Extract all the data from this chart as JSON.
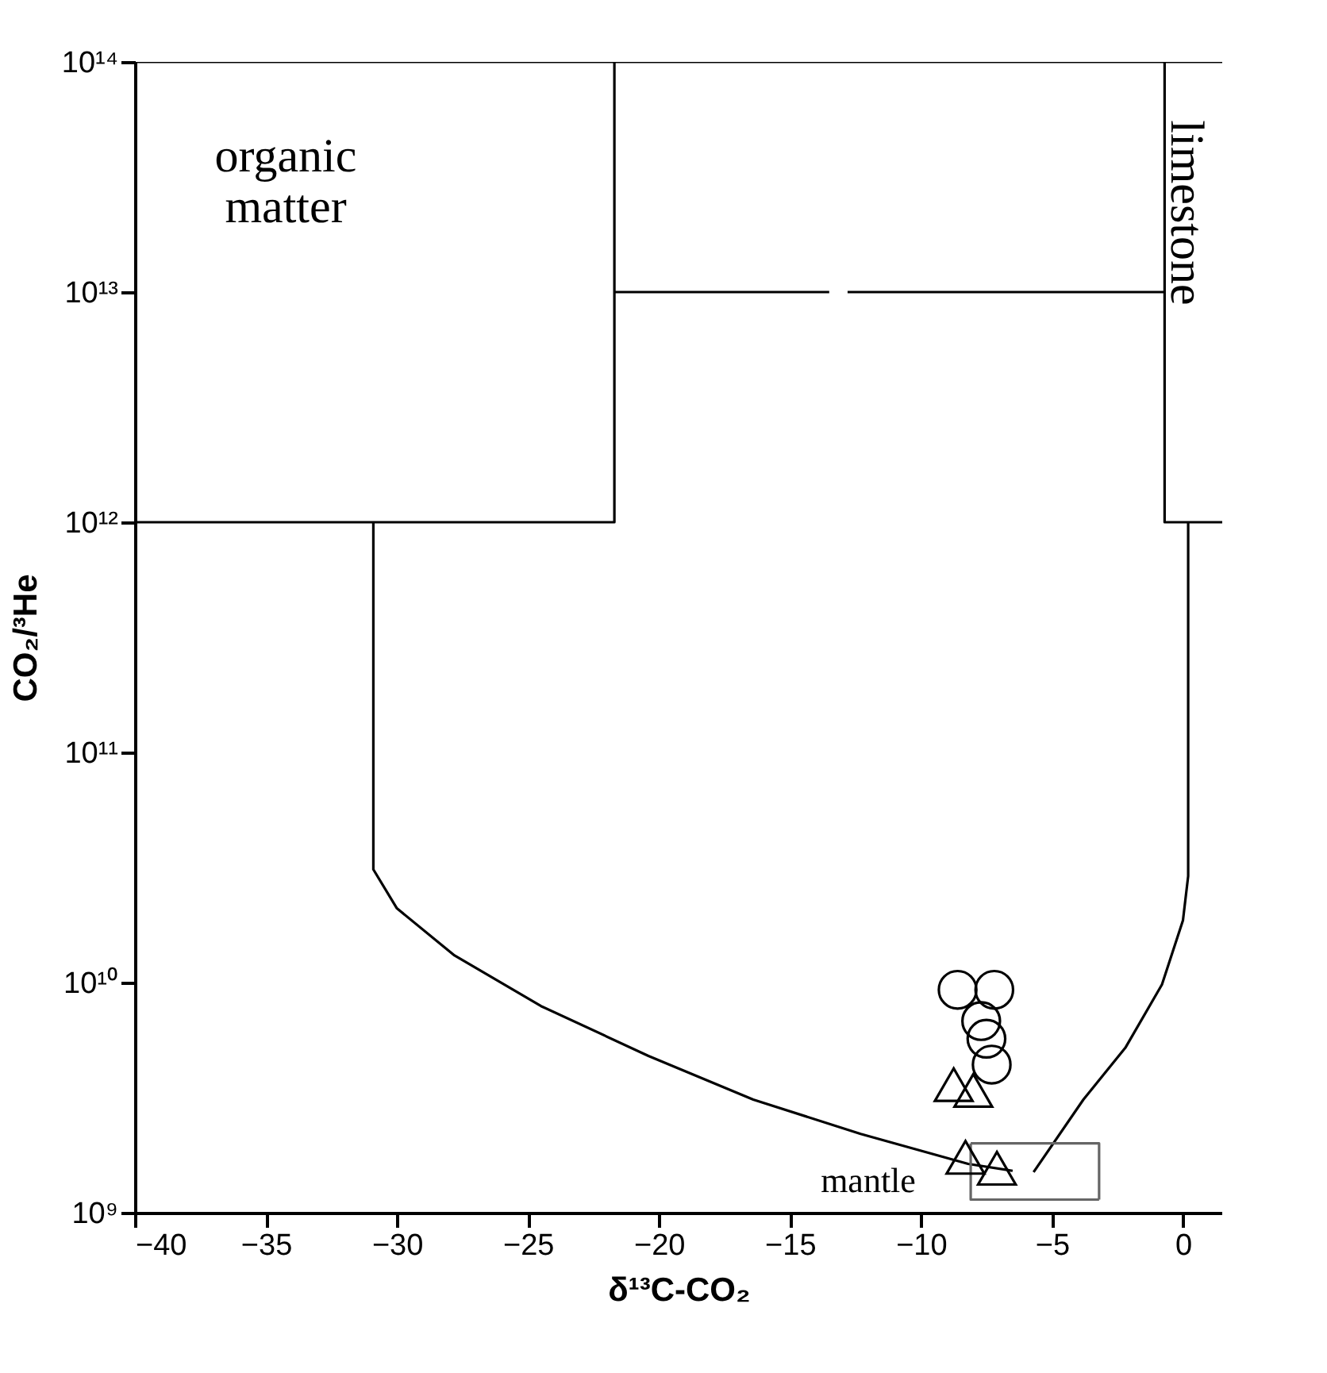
{
  "chart_data": {
    "type": "scatter",
    "xlabel": "δ¹³C-CO₂",
    "ylabel": "CO₂/³He",
    "log": "y",
    "grid": false,
    "xlim": [
      -40,
      1.5
    ],
    "xticks": [
      -40,
      -35,
      -30,
      -25,
      -20,
      -15,
      -10,
      -5,
      0
    ],
    "ylim": [
      1000000000.0,
      100000000000000.0
    ],
    "yticks": [
      {
        "value": 1000000000.0,
        "label": "10⁹"
      },
      {
        "value": 10000000000.0,
        "label": "10¹⁰"
      },
      {
        "value": 100000000000.0,
        "label": "10¹¹"
      },
      {
        "value": 1000000000000.0,
        "label": "10¹²"
      },
      {
        "value": 10000000000000.0,
        "label": "10¹³"
      },
      {
        "value": 100000000000000.0,
        "label": "10¹⁴"
      }
    ],
    "series": [
      {
        "type": "line",
        "color": "#000000",
        "marker": "none",
        "line_style": "solid",
        "x": [
          -40,
          1.5
        ],
        "values": [
          100000000000000.0,
          100000000000000.0
        ]
      },
      {
        "type": "line",
        "color": "#000000",
        "marker": "none",
        "line_style": "solid",
        "x": [
          -40,
          -21.7,
          -21.7
        ],
        "values": [
          1000000000000.0,
          1000000000000.0,
          100000000000000.0
        ]
      },
      {
        "type": "line",
        "color": "#000000",
        "marker": "none",
        "line_style": "solid",
        "x": [
          1.5,
          -0.7,
          -0.7
        ],
        "values": [
          1000000000000.0,
          1000000000000.0,
          100000000000000.0
        ]
      },
      {
        "type": "line",
        "color": "#000000",
        "marker": "none",
        "line_style": "solid",
        "x": [
          -21.7,
          -13.5
        ],
        "values": [
          10000000000000.0,
          10000000000000.0
        ]
      },
      {
        "type": "line",
        "color": "#000000",
        "marker": "none",
        "line_style": "solid",
        "x": [
          -12.8,
          -0.7
        ],
        "values": [
          10000000000000.0,
          10000000000000.0
        ]
      },
      {
        "type": "line",
        "color": "#000000",
        "marker": "none",
        "line_style": "solid",
        "x": [
          -30.9,
          -30.9,
          -30.0,
          -27.8,
          -24.5,
          -20.4,
          -16.4,
          -12.3,
          -8.2,
          -6.5
        ],
        "values": [
          1000000000000.0,
          31000000000.0,
          21000000000.0,
          13100000000.0,
          7900000000.0,
          4800000000.0,
          3100000000.0,
          2200000000.0,
          1630000000.0,
          1520000000.0
        ]
      },
      {
        "type": "line",
        "color": "#000000",
        "marker": "none",
        "line_style": "solid",
        "x": [
          0.2,
          0.2,
          0.0,
          -0.8,
          -2.2,
          -3.8,
          -5.7
        ],
        "values": [
          1000000000000.0,
          29000000000.0,
          18600000000.0,
          9800000000.0,
          5200000000.0,
          3100000000.0,
          1500000000.0
        ]
      },
      {
        "type": "line",
        "color": "#666666",
        "marker": "none",
        "line_style": "solid",
        "x": [
          -8.1,
          -3.2,
          -3.2
        ],
        "values": [
          2000000000.0,
          2000000000.0,
          1140000000.0
        ]
      },
      {
        "type": "line",
        "color": "#666666",
        "marker": "none",
        "line_style": "solid",
        "x": [
          -3.2,
          -8.1,
          -8.1
        ],
        "values": [
          1140000000.0,
          1140000000.0,
          2000000000.0
        ]
      },
      {
        "color": "#000000",
        "marker": "circle",
        "x": [
          -8.6,
          -7.2,
          -7.7,
          -7.5,
          -7.3
        ],
        "values": [
          9300000000.0,
          9300000000.0,
          6800000000.0,
          5700000000.0,
          4400000000.0
        ]
      },
      {
        "color": "#000000",
        "marker": "triangle",
        "x": [
          -8.75,
          -8.0,
          -8.3,
          -7.1
        ],
        "values": [
          3600000000.0,
          3400000000.0,
          1740000000.0,
          1560000000.0
        ]
      }
    ],
    "annotations": [
      "organic\nmatter",
      "limestone",
      "mantle"
    ]
  }
}
